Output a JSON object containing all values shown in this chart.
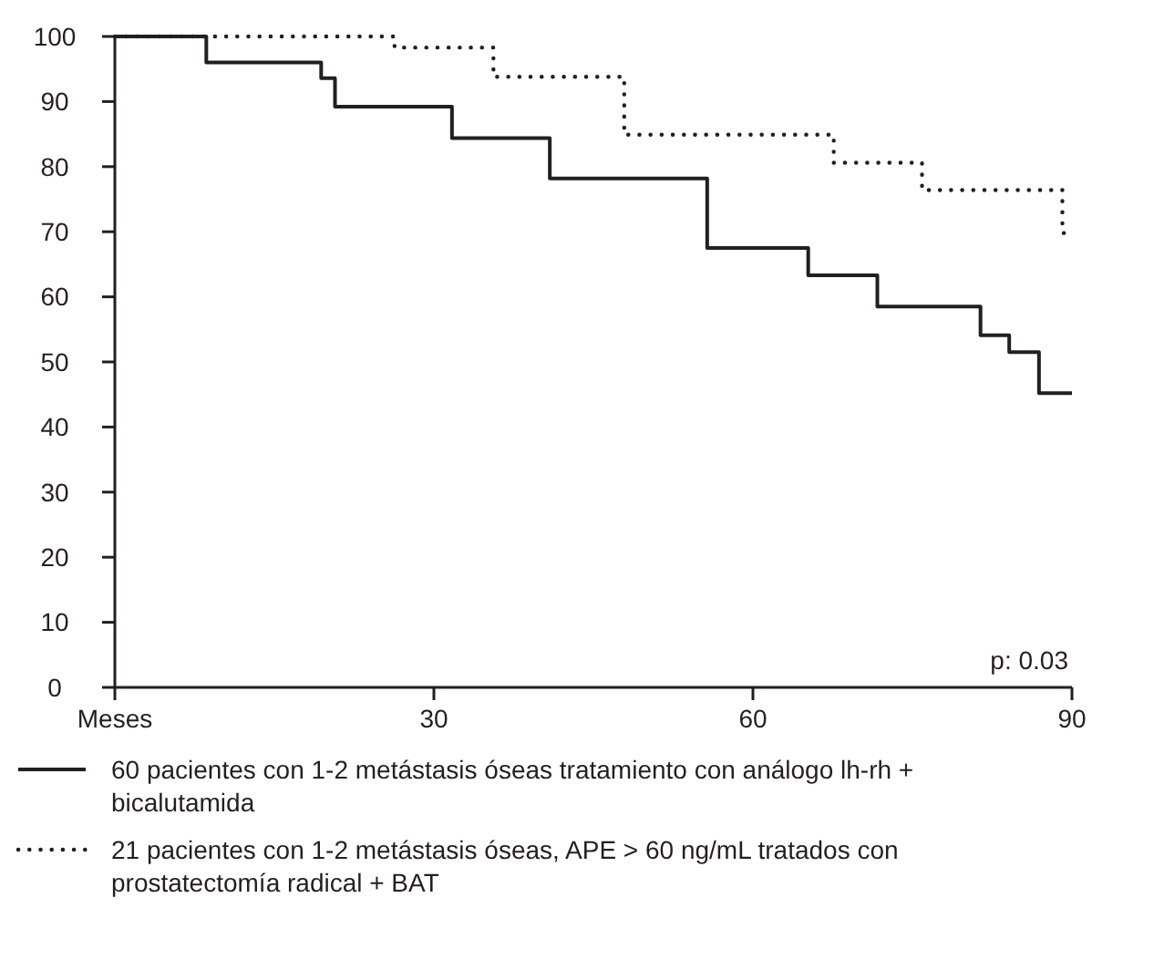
{
  "chart_data": {
    "type": "step",
    "xlim": [
      0,
      90
    ],
    "xticks": [
      {
        "value": 0,
        "label": "Meses"
      },
      30,
      60,
      90
    ],
    "ylim": [
      0,
      100
    ],
    "yticks": [
      0,
      10,
      20,
      30,
      40,
      50,
      60,
      70,
      80,
      90,
      100
    ],
    "grid": false,
    "legend": "bottom",
    "marker": "none",
    "annotations": [
      "p: 0.03"
    ],
    "series": [
      {
        "name": "60 pacientes con 1-2 metástasis óseas tratamiento con análogo lh-rh + bicalutamida",
        "color": "#231f20",
        "line_style": "solid",
        "x": [
          0,
          8.6,
          19.4,
          20.7,
          31.7,
          40.9,
          55.7,
          65.2,
          71.7,
          81.4,
          84.1,
          86.9,
          90
        ],
        "values": [
          100,
          96,
          93.6,
          89.2,
          84.4,
          78.2,
          67.5,
          63.3,
          58.5,
          54.1,
          51.5,
          45.2,
          45.2
        ]
      },
      {
        "name": "21 pacientes con 1-2 metástasis óseas, APE > 60 ng/mL tratados con prostatectomía radical + BAT",
        "color": "#231f20",
        "line_style": "dotted",
        "x": [
          0,
          26.3,
          35.6,
          47.9,
          67.6,
          75.9,
          89.1,
          90
        ],
        "values": [
          100,
          98.3,
          93.8,
          84.9,
          80.6,
          76.4,
          69.8,
          69.8
        ]
      }
    ]
  }
}
